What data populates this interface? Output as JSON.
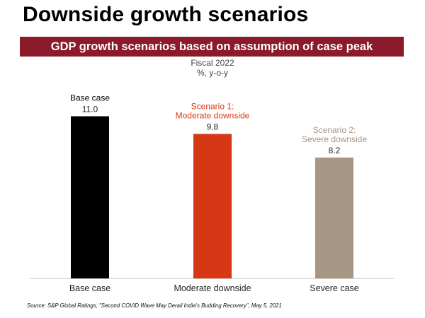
{
  "title": "Downside growth scenarios",
  "banner": "GDP growth scenarios based on assumption of case peak",
  "subtitle_line1": "Fiscal 2022",
  "subtitle_line2": "%, y-o-y",
  "colors": {
    "banner_bg": "#8b1a2a",
    "base": "#000000",
    "moderate": "#d63816",
    "severe": "#a79684",
    "axis": "#bfbfbf"
  },
  "chart_data": {
    "type": "bar",
    "title": "",
    "xlabel": "",
    "ylabel": "",
    "ylim": [
      0,
      11.6
    ],
    "categories": [
      "Base case",
      "Moderate downside",
      "Severe case"
    ],
    "values": [
      11.0,
      9.8,
      8.2
    ],
    "value_labels": [
      "11.0",
      "9.8",
      "8.2"
    ],
    "bar_annotations": [
      [
        "Base case"
      ],
      [
        "Scenario 1:",
        "Moderate downside"
      ],
      [
        "Scenario 2:",
        "Severe downside"
      ]
    ],
    "bar_colors": [
      "#000000",
      "#d63816",
      "#a79684"
    ],
    "annotation_colors": [
      "#000000",
      "#d63816",
      "#a79684"
    ],
    "grid": false,
    "legend": "none"
  },
  "source": "Source: S&P Global Ratings, \"Second COVID Wave May Derail India's Budding  Recovery\", May 5, 2021"
}
